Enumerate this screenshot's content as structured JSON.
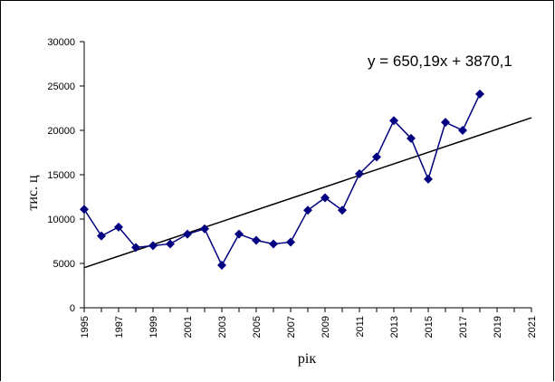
{
  "chart_data": {
    "type": "line",
    "xlabel": "рік",
    "ylabel": "тис. ц",
    "x_ticks": [
      "1995",
      "1997",
      "1999",
      "2001",
      "2003",
      "2005",
      "2007",
      "2009",
      "2011",
      "2013",
      "2015",
      "2017",
      "2019",
      "2021"
    ],
    "y_ticks": [
      "0",
      "5000",
      "10000",
      "15000",
      "20000",
      "25000",
      "30000"
    ],
    "xlim": [
      1995,
      2021
    ],
    "ylim": [
      0,
      30000
    ],
    "grid": false,
    "legend": false,
    "series": [
      {
        "color": "#000080",
        "marker": "diamond",
        "x": [
          1995,
          1996,
          1997,
          1998,
          1999,
          2000,
          2001,
          2002,
          2003,
          2004,
          2005,
          2006,
          2007,
          2008,
          2009,
          2010,
          2011,
          2012,
          2013,
          2014,
          2015,
          2016,
          2017,
          2018
        ],
        "y": [
          11100,
          8100,
          9100,
          6800,
          7000,
          7200,
          8300,
          8900,
          4800,
          8300,
          7600,
          7200,
          7400,
          11000,
          12400,
          11000,
          15100,
          17000,
          21100,
          19100,
          14500,
          20900,
          20000,
          24100
        ]
      }
    ],
    "trendline": {
      "type": "linear",
      "slope": 650.19,
      "intercept": 3870.1,
      "x_start": 1995,
      "x_end": 2021,
      "color": "#000000",
      "equation": "y = 650,19x + 3870,1"
    }
  }
}
